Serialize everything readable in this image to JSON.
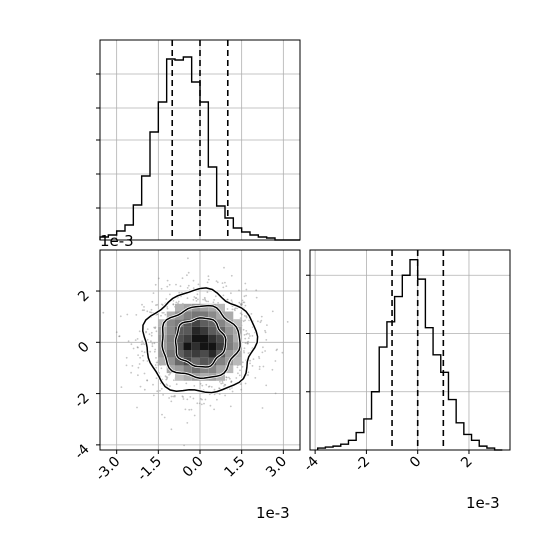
{
  "chart_data": {
    "type": "corner",
    "panels": [
      {
        "id": "x0-hist",
        "type": "histogram",
        "xlim": [
          -3.6,
          3.6
        ],
        "bin_edges": [
          -3.6,
          -3.3,
          -3.0,
          -2.7,
          -2.4,
          -2.1,
          -1.8,
          -1.5,
          -1.2,
          -0.9,
          -0.6,
          -0.3,
          0.0,
          0.3,
          0.6,
          0.9,
          1.2,
          1.5,
          1.8,
          2.1,
          2.4,
          2.7,
          3.0,
          3.3,
          3.6
        ],
        "counts": [
          0.015,
          0.025,
          0.045,
          0.075,
          0.175,
          0.32,
          0.54,
          0.69,
          0.905,
          0.9,
          0.915,
          0.79,
          0.69,
          0.365,
          0.17,
          0.11,
          0.06,
          0.04,
          0.025,
          0.015,
          0.01,
          0,
          0,
          0
        ],
        "ylim": [
          0,
          1.0
        ],
        "quantiles": [
          -1.0,
          0.0,
          1.0
        ],
        "unit_multiplier": "1e-3",
        "show_tick_labels": false,
        "yticks": [
          0.16,
          0.33,
          0.5,
          0.66,
          0.83
        ]
      },
      {
        "id": "x0-x1-2d",
        "type": "contour",
        "xlim": [
          -3.6,
          3.6
        ],
        "ylim": [
          -4.2,
          3.6
        ],
        "xticks": [
          "-3.0",
          "-1.5",
          "0.0",
          "1.5",
          "3.0"
        ],
        "xtick_values": [
          -3.0,
          -1.5,
          0.0,
          1.5,
          3.0
        ],
        "yticks": [
          "-4",
          "-2",
          "0",
          "2"
        ],
        "ytick_values": [
          -4,
          -2,
          0,
          2
        ],
        "x_offset_label": "1e-3",
        "y_offset_label": "1e-3",
        "contour_levels": [
          {
            "rx": 2.0,
            "ry": 2.0
          },
          {
            "rx": 1.4,
            "ry": 1.4
          },
          {
            "rx": 0.9,
            "ry": 0.95
          }
        ]
      },
      {
        "id": "x1-hist",
        "type": "histogram",
        "xlim": [
          -4.2,
          3.6
        ],
        "bin_edges": [
          -3.9,
          -3.6,
          -3.3,
          -3.0,
          -2.7,
          -2.4,
          -2.1,
          -1.8,
          -1.5,
          -1.2,
          -0.9,
          -0.6,
          -0.3,
          0.0,
          0.3,
          0.6,
          0.9,
          1.2,
          1.5,
          1.8,
          2.1,
          2.4,
          2.7,
          3.0,
          3.3
        ],
        "counts": [
          0.01,
          0.015,
          0.02,
          0.03,
          0.05,
          0.09,
          0.16,
          0.3,
          0.53,
          0.66,
          0.79,
          0.9,
          0.98,
          0.88,
          0.63,
          0.49,
          0.4,
          0.26,
          0.14,
          0.08,
          0.05,
          0.02,
          0.01,
          0
        ],
        "ylim": [
          0,
          1.03
        ],
        "quantiles": [
          -1.0,
          0.0,
          1.0
        ],
        "xticks": [
          "-4",
          "-2",
          "0",
          "2"
        ],
        "xtick_values": [
          -4,
          -2,
          0,
          2
        ],
        "x_offset_label": "1e-3",
        "yticks": [
          0.3,
          0.6,
          0.9
        ]
      }
    ]
  }
}
